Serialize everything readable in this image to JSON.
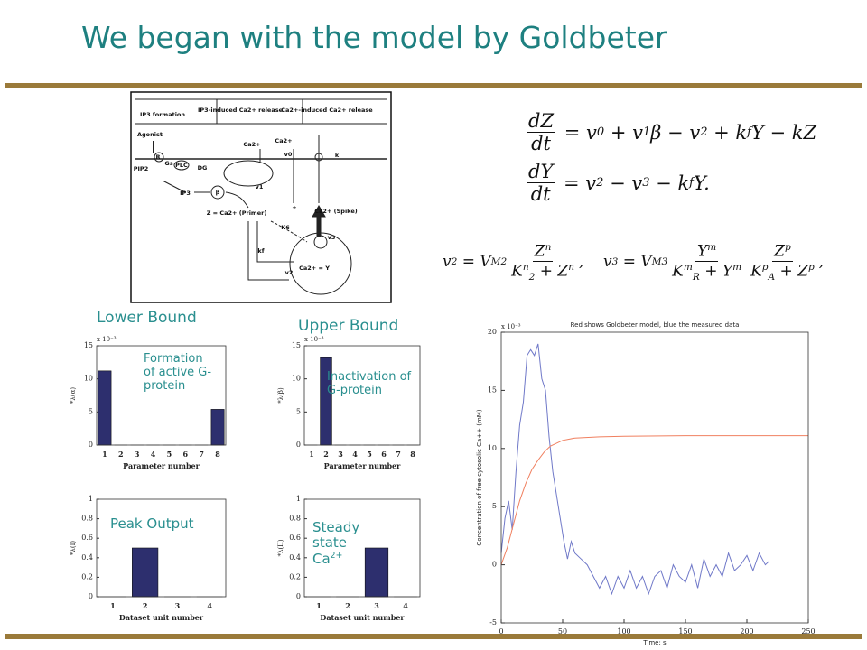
{
  "title": "We began with the model by Goldbeter",
  "annotations": {
    "lower": "Lower Bound",
    "upper": "Upper Bound",
    "formation": "Formation of active G-protein",
    "inactivation": "Inactivation of G-protein",
    "peak": "Peak Output",
    "steady": "Steady state Ca",
    "steady_sup": "2+"
  },
  "equations": [
    [
      {
        "num": [
          "dZ"
        ],
        "den": [
          "dt"
        ]
      },
      " = v",
      {
        "sub": "0"
      },
      " + v",
      {
        "sub": "1"
      },
      "β − v",
      {
        "sub": "2"
      },
      " + k",
      {
        "sub": "f"
      },
      "Y − kZ"
    ],
    [
      {
        "num": [
          "dY"
        ],
        "den": [
          "dt"
        ]
      },
      " = v",
      {
        "sub": "2"
      },
      " − v",
      {
        "sub": "3"
      },
      " − k",
      {
        "sub": "f"
      },
      "Y."
    ],
    [
      "v",
      {
        "sub": "2"
      },
      " = V",
      {
        "sub": "M2"
      },
      {
        "num": [
          "Z",
          {
            "sup": "n"
          }
        ],
        "den": [
          "K",
          {
            "sup": "n"
          },
          {
            "sub": "2"
          },
          " + Z",
          {
            "sup": "n"
          }
        ]
      },
      ",    v",
      {
        "sub": "3"
      },
      " = V",
      {
        "sub": "M3"
      },
      {
        "num": [
          "Y",
          {
            "sup": "m"
          }
        ],
        "den": [
          "K",
          {
            "sup": "m"
          },
          {
            "sub": "R"
          },
          " + Y",
          {
            "sup": "m"
          }
        ]
      },
      {
        "num": [
          "Z",
          {
            "sup": "p"
          }
        ],
        "den": [
          "K",
          {
            "sup": "p"
          },
          {
            "sub": "A"
          },
          " + Z",
          {
            "sup": "p"
          }
        ]
      },
      ","
    ]
  ],
  "diagram": {
    "labels": [
      "IP3 formation",
      "IP3-induced Ca2+ release",
      "Ca2+-induced Ca2+ release",
      "Agonist",
      "R",
      "Gs",
      "PLC",
      "DG",
      "PIP2",
      "IP3",
      "β",
      "Ca2+",
      "Ca2+",
      "v0",
      "k",
      "v1",
      "Z = Ca2+ (Primer)",
      "+",
      "Ca2+ (Spike)",
      "K6",
      "kf",
      "v3",
      "Ca2+ = Y",
      "v2"
    ]
  },
  "chart_data": [
    {
      "type": "bar",
      "categories": [
        "1",
        "2",
        "3",
        "4",
        "5",
        "6",
        "7",
        "8"
      ],
      "values": [
        11.2,
        0,
        0,
        0,
        0,
        0,
        0,
        5.4
      ],
      "color": "#2d2f6e",
      "ylim": [
        0,
        15
      ],
      "yticks": [
        0,
        5,
        10,
        15
      ],
      "offset_label": "x 10⁻³",
      "ylabel": "*λ(α)",
      "xlabel": "Parameter number"
    },
    {
      "type": "bar",
      "categories": [
        "1",
        "2",
        "3",
        "4",
        "5",
        "6",
        "7",
        "8"
      ],
      "values": [
        0,
        13.2,
        0,
        0,
        0,
        0,
        0,
        0
      ],
      "color": "#2d2f6e",
      "ylim": [
        0,
        15
      ],
      "yticks": [
        0,
        5,
        10,
        15
      ],
      "offset_label": "x 10⁻³",
      "ylabel": "*λ(β)",
      "xlabel": "Parameter number"
    },
    {
      "type": "bar",
      "categories": [
        "1",
        "2",
        "3",
        "4"
      ],
      "values": [
        0,
        0.5,
        0,
        0
      ],
      "color": "#2d2f6e",
      "ylim": [
        0,
        1
      ],
      "yticks": [
        0,
        0.2,
        0.4,
        0.6,
        0.8,
        1
      ],
      "ylabel": "*λ(I)",
      "xlabel": "Dataset unit number"
    },
    {
      "type": "bar",
      "categories": [
        "1",
        "2",
        "3",
        "4"
      ],
      "values": [
        0,
        0,
        0.5,
        0
      ],
      "color": "#2d2f6e",
      "ylim": [
        0,
        1
      ],
      "yticks": [
        0,
        0.2,
        0.4,
        0.6,
        0.8,
        1
      ],
      "ylabel": "*λ(II)",
      "xlabel": "Dataset unit number"
    },
    {
      "type": "line",
      "title": "Red shows Goldbeter model, blue the measured data",
      "xlabel": "Time: s",
      "ylabel": "Concentration of free cytosolic Ca++ (mM)",
      "offset_label": "x 10⁻³",
      "xlim": [
        0,
        250
      ],
      "ylim": [
        -5,
        20
      ],
      "xticks": [
        0,
        50,
        100,
        150,
        200,
        250
      ],
      "yticks": [
        -5,
        0,
        5,
        10,
        15,
        20
      ],
      "series": [
        {
          "color": "#6f78c8",
          "x": [
            0,
            3,
            6,
            9,
            12,
            15,
            18,
            21,
            24,
            27,
            30,
            33,
            36,
            39,
            42,
            45,
            48,
            51,
            54,
            57,
            60,
            65,
            70,
            75,
            80,
            85,
            90,
            95,
            100,
            105,
            110,
            115,
            120,
            125,
            130,
            135,
            140,
            145,
            150,
            155,
            160,
            165,
            170,
            175,
            180,
            185,
            190,
            195,
            200,
            205,
            210,
            215,
            218
          ],
          "values": [
            1,
            4,
            5.5,
            3,
            8,
            12,
            14,
            18,
            18.5,
            18,
            19,
            16,
            15,
            11,
            8,
            6,
            4,
            2,
            0.5,
            2,
            1,
            0.5,
            0,
            -1,
            -2,
            -1,
            -2.5,
            -1,
            -2,
            -0.5,
            -2,
            -1,
            -2.5,
            -1,
            -0.5,
            -2,
            0,
            -1,
            -1.5,
            0,
            -2,
            0.5,
            -1,
            0,
            -1,
            1,
            -0.5,
            0,
            0.8,
            -0.5,
            1,
            0,
            0.3
          ]
        },
        {
          "color": "#f08060",
          "x": [
            0,
            5,
            10,
            15,
            20,
            25,
            30,
            35,
            40,
            50,
            60,
            80,
            100,
            150,
            200,
            250
          ],
          "values": [
            0,
            1.5,
            3.5,
            5.5,
            7,
            8.2,
            9,
            9.7,
            10.2,
            10.7,
            10.9,
            11,
            11.05,
            11.1,
            11.1,
            11.1
          ]
        }
      ]
    }
  ]
}
